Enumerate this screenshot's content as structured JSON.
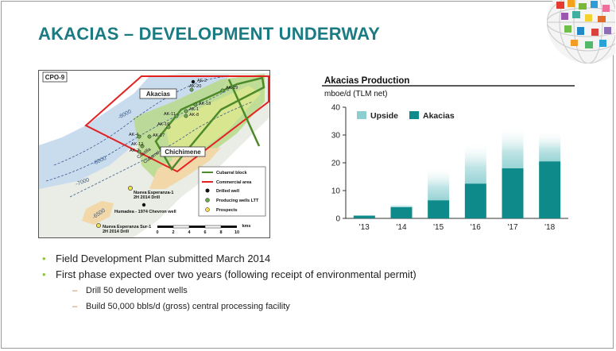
{
  "title": "AKACIAS – DEVELOPMENT UNDERWAY",
  "map": {
    "block_label": "CPO-9",
    "areas": [
      "Akacias",
      "Chichimene"
    ],
    "wells": [
      "AE-2",
      "AK-20",
      "AK-19",
      "AK-18",
      "AK-1",
      "AK-8",
      "AK-11",
      "AK-16",
      "AK-4",
      "AK-17",
      "AK-12",
      "AK-2"
    ],
    "contours": [
      "-8000",
      "-7000",
      "-8000",
      "-6500"
    ],
    "labels": {
      "castilla": "Castilla",
      "cubarral": "Cubarral",
      "nuevo1_a": "Nueva Esperanza-1",
      "nuevo1_b": "2H 2014 Drill",
      "humadea": "Humadea - 1974 Chevron well",
      "nuevo_sur_a": "Nueva Esperanza Sur-1",
      "nuevo_sur_b": "2H 2014 Drill"
    },
    "legend": [
      "Cubarral block",
      "Commercial area",
      "Drilled well",
      "Producing wells LTT",
      "Prospects"
    ],
    "scale_ticks": [
      "0",
      "2",
      "4",
      "6",
      "8",
      "10"
    ],
    "scale_unit": "kms"
  },
  "chart_data": {
    "type": "bar",
    "title": "Akacias Production",
    "ylabel": "mboe/d (TLM net)",
    "ylim": [
      0,
      40
    ],
    "yticks": [
      "0",
      "10",
      "20",
      "30",
      "40"
    ],
    "categories": [
      "'13",
      "'14",
      "'15",
      "'16",
      "'17",
      "'18"
    ],
    "series": [
      {
        "name": "Akacias",
        "values": [
          1,
          4,
          6.5,
          12.5,
          18,
          20.5
        ]
      },
      {
        "name": "Upside",
        "values": [
          0,
          1,
          12,
          15,
          15,
          11
        ]
      }
    ],
    "legend_position": "top-left",
    "colors": {
      "Akacias": "#0f8a8a",
      "Upside": "#8dcfd1"
    }
  },
  "bullets": [
    {
      "text": "Field Development Plan submitted March 2014",
      "sub": []
    },
    {
      "text": "First phase expected over two years (following receipt of environmental permit)",
      "sub": [
        "Drill 50 development wells",
        "Build 50,000 bbls/d (gross) central processing facility"
      ]
    }
  ],
  "colors": {
    "title": "#1b7b82",
    "bullet": "#8cc63f",
    "dash": "#c87030"
  }
}
